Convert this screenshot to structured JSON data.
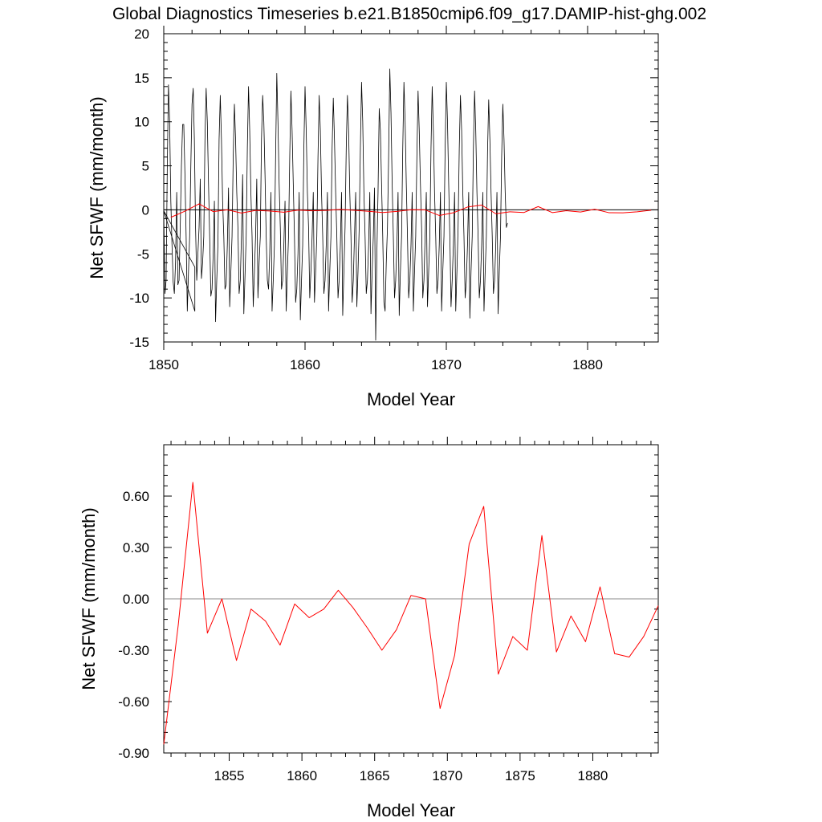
{
  "title": "Global Diagnostics Timeseries b.e21.B1850cmip6.f09_g17.DAMIP-hist-ghg.002",
  "colors": {
    "monthly_line": "#000000",
    "annual_line": "#ff0000",
    "zero_line": "#888888",
    "axis": "#000000"
  },
  "chart_data": [
    {
      "type": "line",
      "title": "Global Diagnostics Timeseries b.e21.B1850cmip6.f09_g17.DAMIP-hist-ghg.002",
      "xlabel": "Model Year",
      "ylabel": "Net SFWF (mm/month)",
      "xlim": [
        1850,
        1885
      ],
      "ylim": [
        -15,
        20
      ],
      "xticks": [
        "1850",
        "1860",
        "1870",
        "1880"
      ],
      "yticks": [
        "-15",
        "-10",
        "-5",
        "0",
        "5",
        "10",
        "15",
        "20"
      ],
      "grid": false,
      "zero_line": 0,
      "series": [
        {
          "kind": "monthly",
          "x_start": 1850.0,
          "x_step": 0.0833333,
          "values": [
            -0.1,
            -9.5,
            -8.0,
            5.0,
            14.2,
            10.0,
            1.0,
            -4.0,
            -8.2,
            -9.5,
            -6.0,
            2.0,
            -8.5,
            -8.0,
            -2.0,
            5.0,
            9.7,
            9.7,
            4.0,
            -3.0,
            -11.5,
            -7.0,
            -3.0,
            5.0,
            12.0,
            13.8,
            8.0,
            -2.0,
            -8.0,
            -5.0,
            -2.0,
            3.5,
            -7.8,
            -6.0,
            -3.0,
            8.0,
            13.8,
            10.0,
            3.0,
            -3.0,
            -9.8,
            -9.0,
            -5.0,
            1.0,
            -12.7,
            -8.0,
            -4.0,
            8.0,
            13.0,
            8.0,
            1.0,
            -3.0,
            -9.0,
            -8.5,
            -4.0,
            2.5,
            -11.0,
            -7.0,
            -3.0,
            6.0,
            12.0,
            8.0,
            2.0,
            -2.0,
            -9.5,
            -8.0,
            -3.0,
            4.0,
            -11.8,
            -7.5,
            -3.0,
            7.0,
            14.0,
            9.0,
            2.0,
            -3.0,
            -11.0,
            -7.0,
            -3.0,
            3.5,
            -10.0,
            -6.0,
            -3.0,
            8.0,
            13.0,
            10.0,
            4.0,
            -3.0,
            -8.0,
            -9.0,
            -5.0,
            2.0,
            -11.5,
            -8.0,
            -4.0,
            6.0,
            15.5,
            10.0,
            3.0,
            -2.0,
            -9.0,
            -8.0,
            -4.0,
            1.0,
            -11.5,
            -7.0,
            -3.0,
            6.0,
            13.5,
            9.0,
            3.0,
            -3.0,
            -10.5,
            -9.0,
            -5.0,
            2.0,
            -12.5,
            -8.0,
            -4.0,
            7.0,
            14.0,
            9.0,
            2.0,
            -2.0,
            -10.0,
            -7.0,
            -3.0,
            2.0,
            -10.5,
            -7.0,
            -3.0,
            6.0,
            13.0,
            9.0,
            2.0,
            -3.0,
            -9.5,
            -8.0,
            -4.0,
            2.0,
            -11.5,
            -7.0,
            -3.0,
            7.0,
            12.7,
            8.0,
            2.0,
            -3.0,
            -10.0,
            -8.0,
            -4.0,
            2.0,
            -12.0,
            -7.0,
            -2.0,
            7.0,
            13.0,
            9.0,
            2.0,
            -3.0,
            -10.5,
            -8.0,
            -3.0,
            2.0,
            -11.0,
            -7.0,
            -2.0,
            7.0,
            14.5,
            10.0,
            2.0,
            -3.0,
            -9.5,
            -8.0,
            -4.0,
            2.0,
            -11.8,
            -7.0,
            -3.0,
            2.5,
            -14.8,
            -5.0,
            2.0,
            11.5,
            9.0,
            3.0,
            -3.0,
            -10.5,
            -11.5,
            -6.0,
            -2.0,
            6.0,
            16.0,
            11.0,
            3.0,
            -3.0,
            -10.0,
            -8.0,
            -4.0,
            2.0,
            -12.0,
            -7.0,
            -3.0,
            7.0,
            14.5,
            10.0,
            3.0,
            -3.0,
            -10.0,
            -8.0,
            -4.0,
            2.0,
            -11.5,
            -7.0,
            -3.0,
            6.0,
            13.5,
            9.0,
            3.0,
            -2.0,
            -10.0,
            -8.0,
            -3.0,
            2.0,
            -11.0,
            -7.0,
            -3.0,
            7.0,
            14.0,
            9.0,
            2.0,
            -3.0,
            -9.5,
            -8.0,
            -4.0,
            2.0,
            -11.5,
            -7.0,
            -3.0,
            7.0,
            14.5,
            10.0,
            3.0,
            -3.0,
            -11.0,
            -8.0,
            -4.0,
            2.0,
            -11.5,
            -7.0,
            -2.0,
            7.0,
            13.0,
            9.0,
            2.0,
            -3.0,
            -10.0,
            -8.0,
            -4.0,
            2.0,
            -12.3,
            -7.0,
            -3.0,
            7.0,
            13.5,
            9.0,
            2.0,
            -3.0,
            -10.0,
            -8.0,
            -4.0,
            2.0,
            -11.5,
            -7.0,
            -3.0,
            6.5,
            12.5,
            8.0,
            2.0,
            -3.0,
            -9.5,
            -8.0,
            -4.0,
            2.0,
            -11.8,
            -7.0,
            -3.0,
            6.0,
            12.0,
            8.0,
            2.0,
            -2.0,
            -1.5
          ]
        },
        {
          "kind": "spurious",
          "points": [
            [
              1850.0,
              -0.1
            ],
            [
              1852.2,
              -11.5
            ],
            [
              1852.2,
              -6.5
            ],
            [
              1850.0,
              -0.1
            ]
          ]
        },
        {
          "kind": "annual",
          "x": [
            1850.5,
            1851.5,
            1852.5,
            1853.5,
            1854.5,
            1855.5,
            1856.5,
            1857.5,
            1858.5,
            1859.5,
            1860.5,
            1861.5,
            1862.5,
            1863.5,
            1864.5,
            1865.5,
            1866.5,
            1867.5,
            1868.5,
            1869.5,
            1870.5,
            1871.5,
            1872.5,
            1873.5,
            1874.5,
            1875.5,
            1876.5,
            1877.5,
            1878.5,
            1879.5,
            1880.5,
            1881.5,
            1882.5,
            1883.5,
            1884.5
          ],
          "values": [
            -0.85,
            -0.15,
            0.68,
            -0.2,
            0.0,
            -0.36,
            -0.06,
            -0.13,
            -0.27,
            -0.03,
            -0.11,
            -0.06,
            0.05,
            -0.05,
            -0.17,
            -0.3,
            -0.18,
            0.02,
            0.0,
            -0.64,
            -0.33,
            0.32,
            0.54,
            -0.44,
            -0.22,
            -0.3,
            0.37,
            -0.31,
            -0.1,
            -0.25,
            0.07,
            -0.32,
            -0.34,
            -0.22,
            -0.04
          ]
        }
      ]
    },
    {
      "type": "line",
      "xlabel": "Model Year",
      "ylabel": "Net SFWF (mm/month)",
      "xlim": [
        1850.5,
        1884.5
      ],
      "ylim": [
        -0.9,
        0.9
      ],
      "xticks": [
        "1855",
        "1860",
        "1865",
        "1870",
        "1875",
        "1880"
      ],
      "yticks": [
        "-0.90",
        "-0.60",
        "-0.30",
        "0.00",
        "0.30",
        "0.60"
      ],
      "grid": false,
      "zero_line": 0,
      "series": [
        {
          "kind": "annual",
          "x": [
            1850.5,
            1851.5,
            1852.5,
            1853.5,
            1854.5,
            1855.5,
            1856.5,
            1857.5,
            1858.5,
            1859.5,
            1860.5,
            1861.5,
            1862.5,
            1863.5,
            1864.5,
            1865.5,
            1866.5,
            1867.5,
            1868.5,
            1869.5,
            1870.5,
            1871.5,
            1872.5,
            1873.5,
            1874.5,
            1875.5,
            1876.5,
            1877.5,
            1878.5,
            1879.5,
            1880.5,
            1881.5,
            1882.5,
            1883.5,
            1884.5
          ],
          "values": [
            -0.85,
            -0.15,
            0.68,
            -0.2,
            0.0,
            -0.36,
            -0.06,
            -0.13,
            -0.27,
            -0.03,
            -0.11,
            -0.06,
            0.05,
            -0.05,
            -0.17,
            -0.3,
            -0.18,
            0.02,
            0.0,
            -0.64,
            -0.33,
            0.32,
            0.54,
            -0.44,
            -0.22,
            -0.3,
            0.37,
            -0.31,
            -0.1,
            -0.25,
            0.07,
            -0.32,
            -0.34,
            -0.22,
            -0.04
          ]
        }
      ]
    }
  ]
}
